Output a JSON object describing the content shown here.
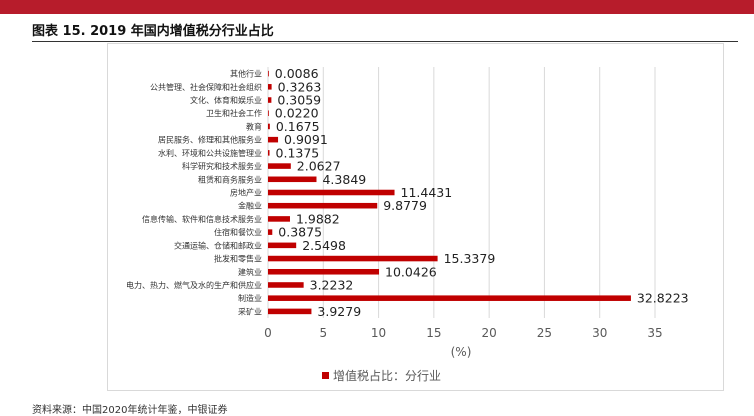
{
  "figure_title": "图表 15. 2019 年国内增值税分行业占比",
  "colors": {
    "bar": "#c00000",
    "accent": "#b71c2b",
    "grid": "#d9d9d9",
    "text": "#595959"
  },
  "chart_data": {
    "type": "bar",
    "orientation": "horizontal",
    "categories": [
      "其他行业",
      "公共管理、社会保障和社会组织",
      "文化、体育和娱乐业",
      "卫生和社会工作",
      "教育",
      "居民服务、修理和其他服务业",
      "水利、环境和公共设施管理业",
      "科学研究和技术服务业",
      "租赁和商务服务业",
      "房地产业",
      "金融业",
      "信息传输、软件和信息技术服务业",
      "住宿和餐饮业",
      "交通运输、仓储和邮政业",
      "批发和零售业",
      "建筑业",
      "电力、热力、燃气及水的生产和供应业",
      "制造业",
      "采矿业"
    ],
    "value_labels": [
      "0.0086",
      "0.3263",
      "0.3059",
      "0.0220",
      "0.1675",
      "0.9091",
      "0.1375",
      "2.0627",
      "4.3849",
      "11.4431",
      "9.8779",
      "1.9882",
      "0.3875",
      "2.5498",
      "15.3379",
      "10.0426",
      "3.2232",
      "32.8223",
      "3.9279"
    ],
    "series": [
      {
        "name": "增值税占比：分行业",
        "values": [
          0.0086,
          0.3263,
          0.3059,
          0.022,
          0.1675,
          0.9091,
          0.1375,
          2.0627,
          4.3849,
          11.4431,
          9.8779,
          1.9882,
          0.3875,
          2.5498,
          15.3379,
          10.0426,
          3.2232,
          32.8223,
          3.9279
        ]
      }
    ],
    "xlim": [
      0,
      35
    ],
    "x_ticks": [
      "0",
      "5",
      "10",
      "15",
      "20",
      "25",
      "30",
      "35"
    ],
    "xlabel": "(%)",
    "grid": true,
    "legend_position": "bottom"
  },
  "source": "资料来源：中国2020年统计年鉴，中银证券"
}
